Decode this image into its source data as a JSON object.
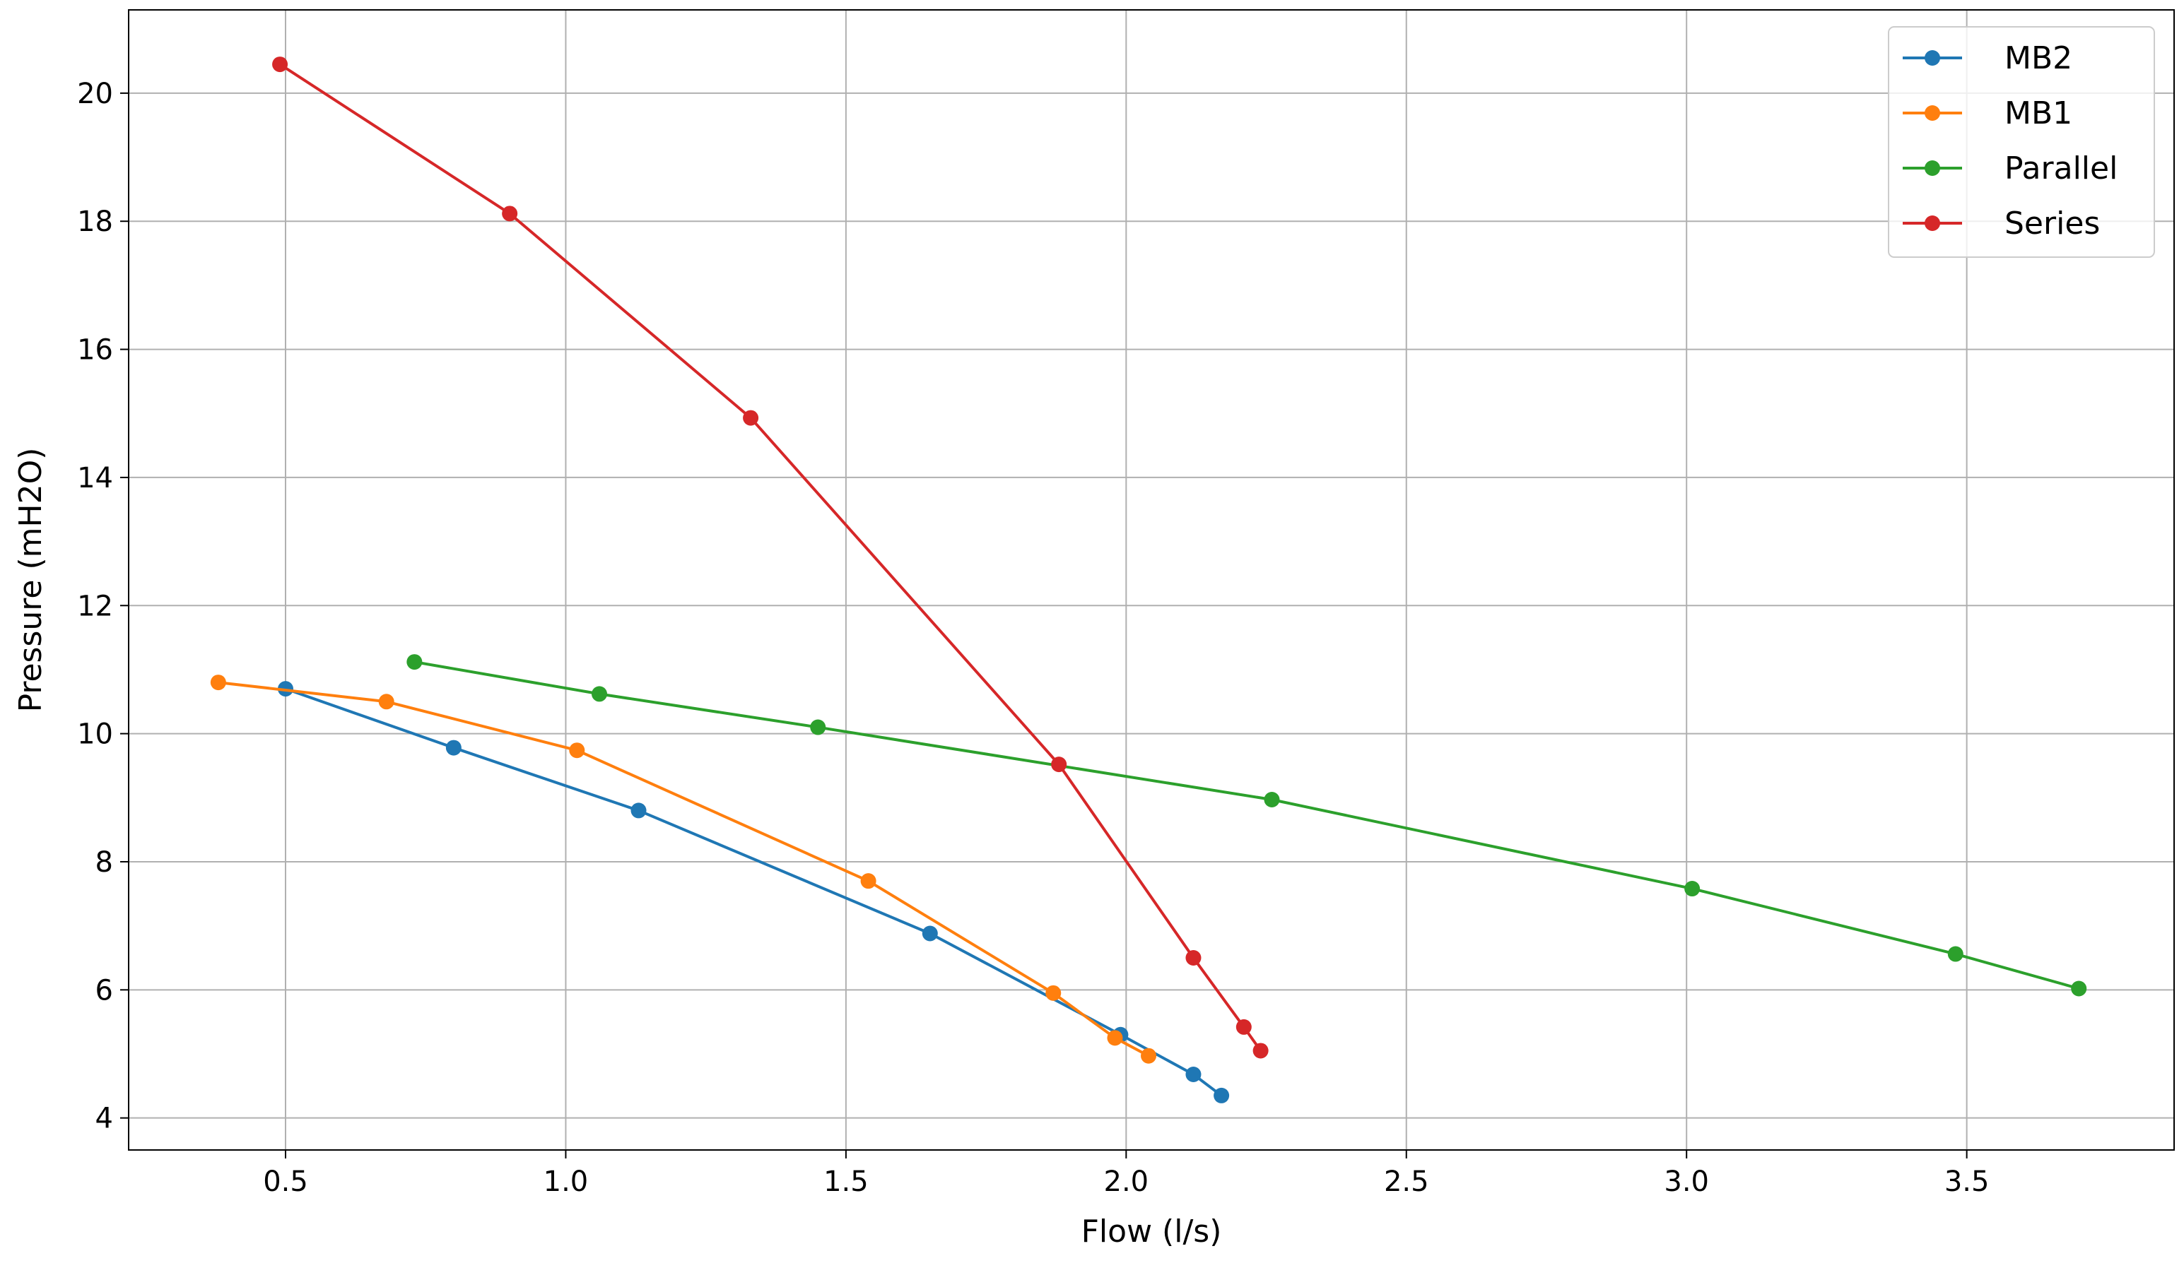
{
  "chart_data": {
    "type": "line",
    "title": "",
    "xlabel": "Flow (l/s)",
    "ylabel": "Pressure (mH2O)",
    "xlim": [
      0.22,
      3.87
    ],
    "ylim": [
      3.5,
      21.3
    ],
    "xticks": [
      0.5,
      1.0,
      1.5,
      2.0,
      2.5,
      3.0,
      3.5
    ],
    "xtick_labels": [
      "0.5",
      "1.0",
      "1.5",
      "2.0",
      "2.5",
      "3.0",
      "3.5"
    ],
    "yticks": [
      4,
      6,
      8,
      10,
      12,
      14,
      16,
      18,
      20
    ],
    "ytick_labels": [
      "4",
      "6",
      "8",
      "10",
      "12",
      "14",
      "16",
      "18",
      "20"
    ],
    "grid": true,
    "legend_position": "top-right",
    "markers": "circle",
    "series": [
      {
        "name": "MB2",
        "color": "#1f77b4",
        "x": [
          0.5,
          0.8,
          1.13,
          1.65,
          1.99,
          2.12,
          2.17
        ],
        "y": [
          10.7,
          9.78,
          8.8,
          6.88,
          5.3,
          4.68,
          4.35
        ]
      },
      {
        "name": "MB1",
        "color": "#ff7f0e",
        "x": [
          0.38,
          0.68,
          1.02,
          1.54,
          1.87,
          1.98,
          2.04
        ],
        "y": [
          10.8,
          10.5,
          9.74,
          7.7,
          5.95,
          5.25,
          4.97
        ]
      },
      {
        "name": "Parallel",
        "color": "#2ca02c",
        "x": [
          0.73,
          1.06,
          1.45,
          2.26,
          3.01,
          3.48,
          3.7
        ],
        "y": [
          11.12,
          10.62,
          10.1,
          8.97,
          7.58,
          6.56,
          6.02
        ]
      },
      {
        "name": "Series",
        "color": "#d62728",
        "x": [
          0.49,
          0.9,
          1.33,
          1.88,
          2.12,
          2.21,
          2.24
        ],
        "y": [
          20.45,
          18.12,
          14.93,
          9.52,
          6.5,
          5.42,
          5.05
        ]
      }
    ]
  }
}
